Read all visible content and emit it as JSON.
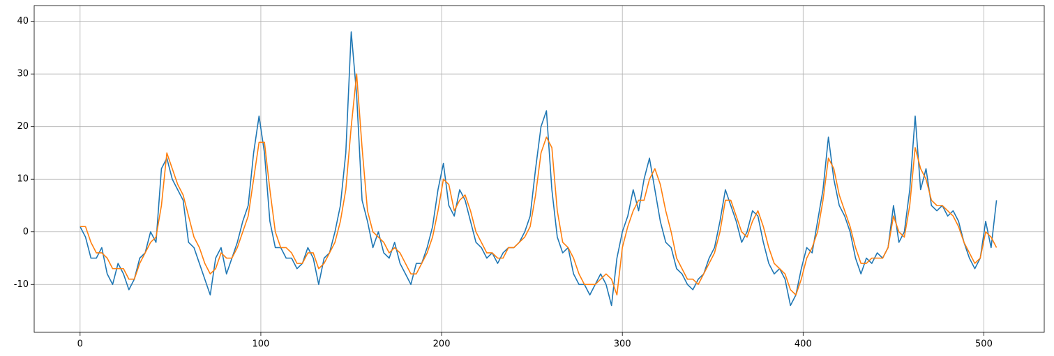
{
  "chart_data": {
    "type": "line",
    "x": [
      0,
      3,
      6,
      9,
      12,
      15,
      18,
      21,
      24,
      27,
      30,
      33,
      36,
      39,
      42,
      45,
      48,
      51,
      54,
      57,
      60,
      63,
      66,
      69,
      72,
      75,
      78,
      81,
      84,
      87,
      90,
      93,
      96,
      99,
      102,
      105,
      108,
      111,
      114,
      117,
      120,
      123,
      126,
      129,
      132,
      135,
      138,
      141,
      144,
      147,
      150,
      153,
      156,
      159,
      162,
      165,
      168,
      171,
      174,
      177,
      180,
      183,
      186,
      189,
      192,
      195,
      198,
      201,
      204,
      207,
      210,
      213,
      216,
      219,
      222,
      225,
      228,
      231,
      234,
      237,
      240,
      243,
      246,
      249,
      252,
      255,
      258,
      261,
      264,
      267,
      270,
      273,
      276,
      279,
      282,
      285,
      288,
      291,
      294,
      297,
      300,
      303,
      306,
      309,
      312,
      315,
      318,
      321,
      324,
      327,
      330,
      333,
      336,
      339,
      342,
      345,
      348,
      351,
      354,
      357,
      360,
      363,
      366,
      369,
      372,
      375,
      378,
      381,
      384,
      387,
      390,
      393,
      396,
      399,
      402,
      405,
      408,
      411,
      414,
      417,
      420,
      423,
      426,
      429,
      432,
      435,
      438,
      441,
      444,
      447,
      450,
      453,
      456,
      459,
      462,
      465,
      468,
      471,
      474,
      477,
      480,
      483,
      486,
      489,
      492,
      495,
      498,
      501,
      504,
      507
    ],
    "series": [
      {
        "color": "#1f77b4",
        "values": [
          1,
          -1,
          -5,
          -5,
          -3,
          -8,
          -10,
          -6,
          -8,
          -11,
          -9,
          -5,
          -4,
          0,
          -2,
          12,
          14,
          10,
          8,
          6,
          -2,
          -3,
          -6,
          -9,
          -12,
          -5,
          -3,
          -8,
          -5,
          -2,
          2,
          5,
          15,
          22,
          15,
          2,
          -3,
          -3,
          -5,
          -5,
          -7,
          -6,
          -3,
          -5,
          -10,
          -5,
          -4,
          0,
          5,
          15,
          38,
          26,
          6,
          2,
          -3,
          0,
          -4,
          -5,
          -2,
          -6,
          -8,
          -10,
          -6,
          -6,
          -3,
          1,
          8,
          13,
          5,
          3,
          8,
          6,
          2,
          -2,
          -3,
          -5,
          -4,
          -6,
          -4,
          -3,
          -3,
          -2,
          0,
          3,
          12,
          20,
          23,
          8,
          -1,
          -4,
          -3,
          -8,
          -10,
          -10,
          -12,
          -10,
          -8,
          -10,
          -14,
          -5,
          0,
          3,
          8,
          4,
          10,
          14,
          8,
          2,
          -2,
          -3,
          -7,
          -8,
          -10,
          -11,
          -9,
          -8,
          -5,
          -3,
          2,
          8,
          5,
          2,
          -2,
          0,
          4,
          3,
          -2,
          -6,
          -8,
          -7,
          -9,
          -14,
          -12,
          -7,
          -3,
          -4,
          2,
          8,
          18,
          10,
          5,
          3,
          0,
          -5,
          -8,
          -5,
          -6,
          -4,
          -5,
          -3,
          5,
          -2,
          0,
          8,
          22,
          8,
          12,
          5,
          4,
          5,
          3,
          4,
          2,
          -2,
          -5,
          -7,
          -5,
          2,
          -3,
          6
        ]
      },
      {
        "color": "#ff7f0e",
        "values": [
          1,
          1,
          -2,
          -4,
          -4,
          -5,
          -7,
          -7,
          -7,
          -9,
          -9,
          -6,
          -4,
          -2,
          -1,
          5,
          15,
          12,
          9,
          7,
          3,
          -1,
          -3,
          -6,
          -8,
          -7,
          -4,
          -5,
          -5,
          -3,
          0,
          3,
          10,
          17,
          17,
          8,
          0,
          -3,
          -3,
          -4,
          -6,
          -6,
          -4,
          -4,
          -7,
          -6,
          -4,
          -2,
          2,
          8,
          20,
          30,
          16,
          4,
          0,
          -1,
          -2,
          -4,
          -3,
          -4,
          -6,
          -8,
          -8,
          -6,
          -4,
          -1,
          4,
          10,
          9,
          4,
          6,
          7,
          4,
          0,
          -2,
          -4,
          -4,
          -5,
          -5,
          -3,
          -3,
          -2,
          -1,
          1,
          7,
          15,
          18,
          16,
          4,
          -2,
          -3,
          -5,
          -8,
          -10,
          -10,
          -10,
          -9,
          -8,
          -9,
          -12,
          -3,
          1,
          4,
          6,
          6,
          10,
          12,
          9,
          4,
          0,
          -5,
          -7,
          -9,
          -9,
          -10,
          -8,
          -6,
          -4,
          0,
          6,
          6,
          3,
          0,
          -1,
          2,
          4,
          1,
          -3,
          -6,
          -7,
          -8,
          -11,
          -12,
          -9,
          -5,
          -3,
          0,
          6,
          14,
          12,
          7,
          4,
          1,
          -3,
          -6,
          -6,
          -5,
          -5,
          -5,
          -3,
          3,
          0,
          -1,
          5,
          16,
          12,
          10,
          6,
          5,
          5,
          4,
          3,
          1,
          -2,
          -4,
          -6,
          -5,
          0,
          -1,
          -3
        ]
      }
    ],
    "xlim": [
      -25.4,
      533.4
    ],
    "ylim": [
      -19.1,
      43.0
    ],
    "xticks": [
      0,
      100,
      200,
      300,
      400,
      500
    ],
    "yticks": [
      -10,
      0,
      10,
      20,
      30,
      40
    ],
    "grid": true
  }
}
